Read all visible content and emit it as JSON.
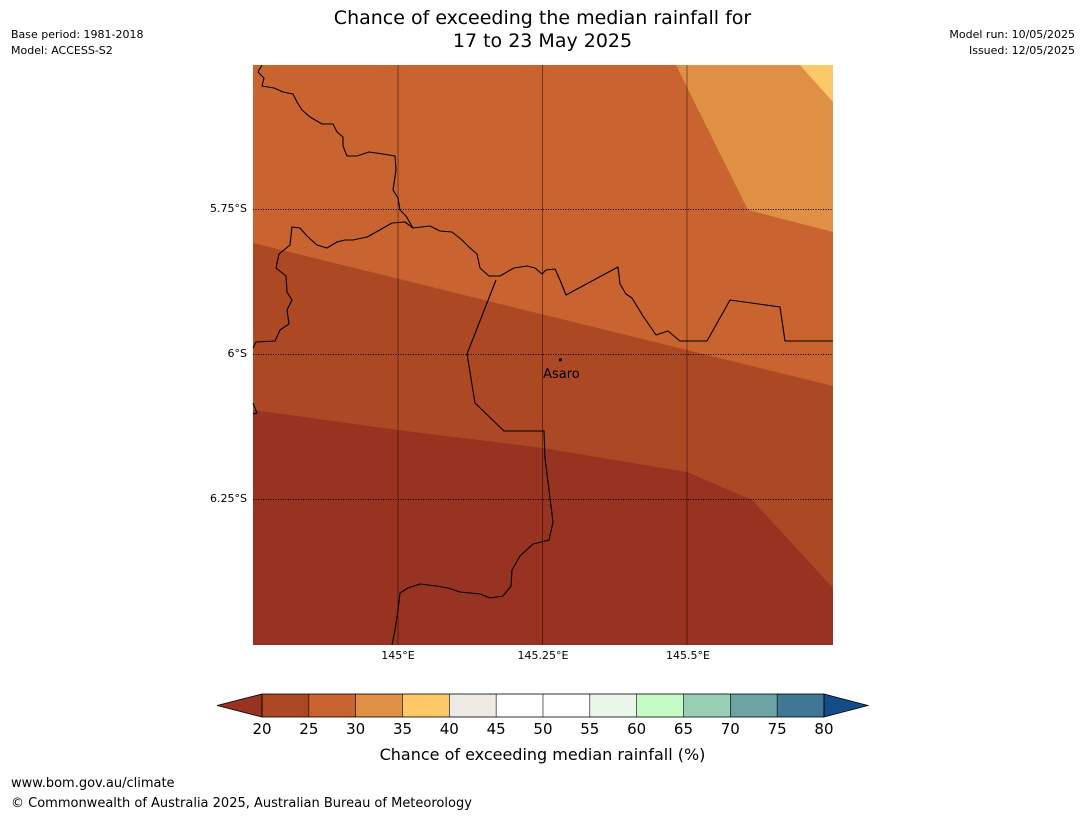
{
  "title": {
    "line1": "Chance of exceeding the median rainfall for",
    "line2": "17 to 23 May 2025"
  },
  "meta": {
    "base_period": "Base period: 1981-2018",
    "model": "Model: ACCESS-S2",
    "model_run": "Model run: 10/05/2025",
    "issued": "Issued: 12/05/2025"
  },
  "map": {
    "lat_ticks": [
      "5.75°S",
      "6°S",
      "6.25°S"
    ],
    "lon_ticks": [
      "145°E",
      "145.25°E",
      "145.5°E"
    ],
    "place": {
      "name": "Asaro",
      "lon": 145.28,
      "lat": -6.01
    },
    "bands": [
      {
        "range": "20-25",
        "color": "#973320"
      },
      {
        "range": "25-30",
        "color": "#ad4825"
      },
      {
        "range": "30-35",
        "color": "#c96431"
      },
      {
        "range": "35-40",
        "color": "#e09045"
      }
    ]
  },
  "colorbar": {
    "ticks": [
      "20",
      "25",
      "30",
      "35",
      "40",
      "45",
      "50",
      "55",
      "60",
      "65",
      "70",
      "75",
      "80"
    ],
    "colors": [
      "#ad4825",
      "#c96431",
      "#e09045",
      "#fdc966",
      "#ede9e5",
      "#ffffff",
      "#ffffff",
      "#eaf6ea",
      "#c6fbc6",
      "#99cfb7",
      "#6ea3a3",
      "#3f7794"
    ],
    "under_color": "#973320",
    "over_color": "#114e88",
    "label": "Chance of exceeding median rainfall (%)"
  },
  "footer": {
    "url": "www.bom.gov.au/climate",
    "copyright": "© Commonwealth of Australia 2025, Australian Bureau of Meteorology"
  }
}
